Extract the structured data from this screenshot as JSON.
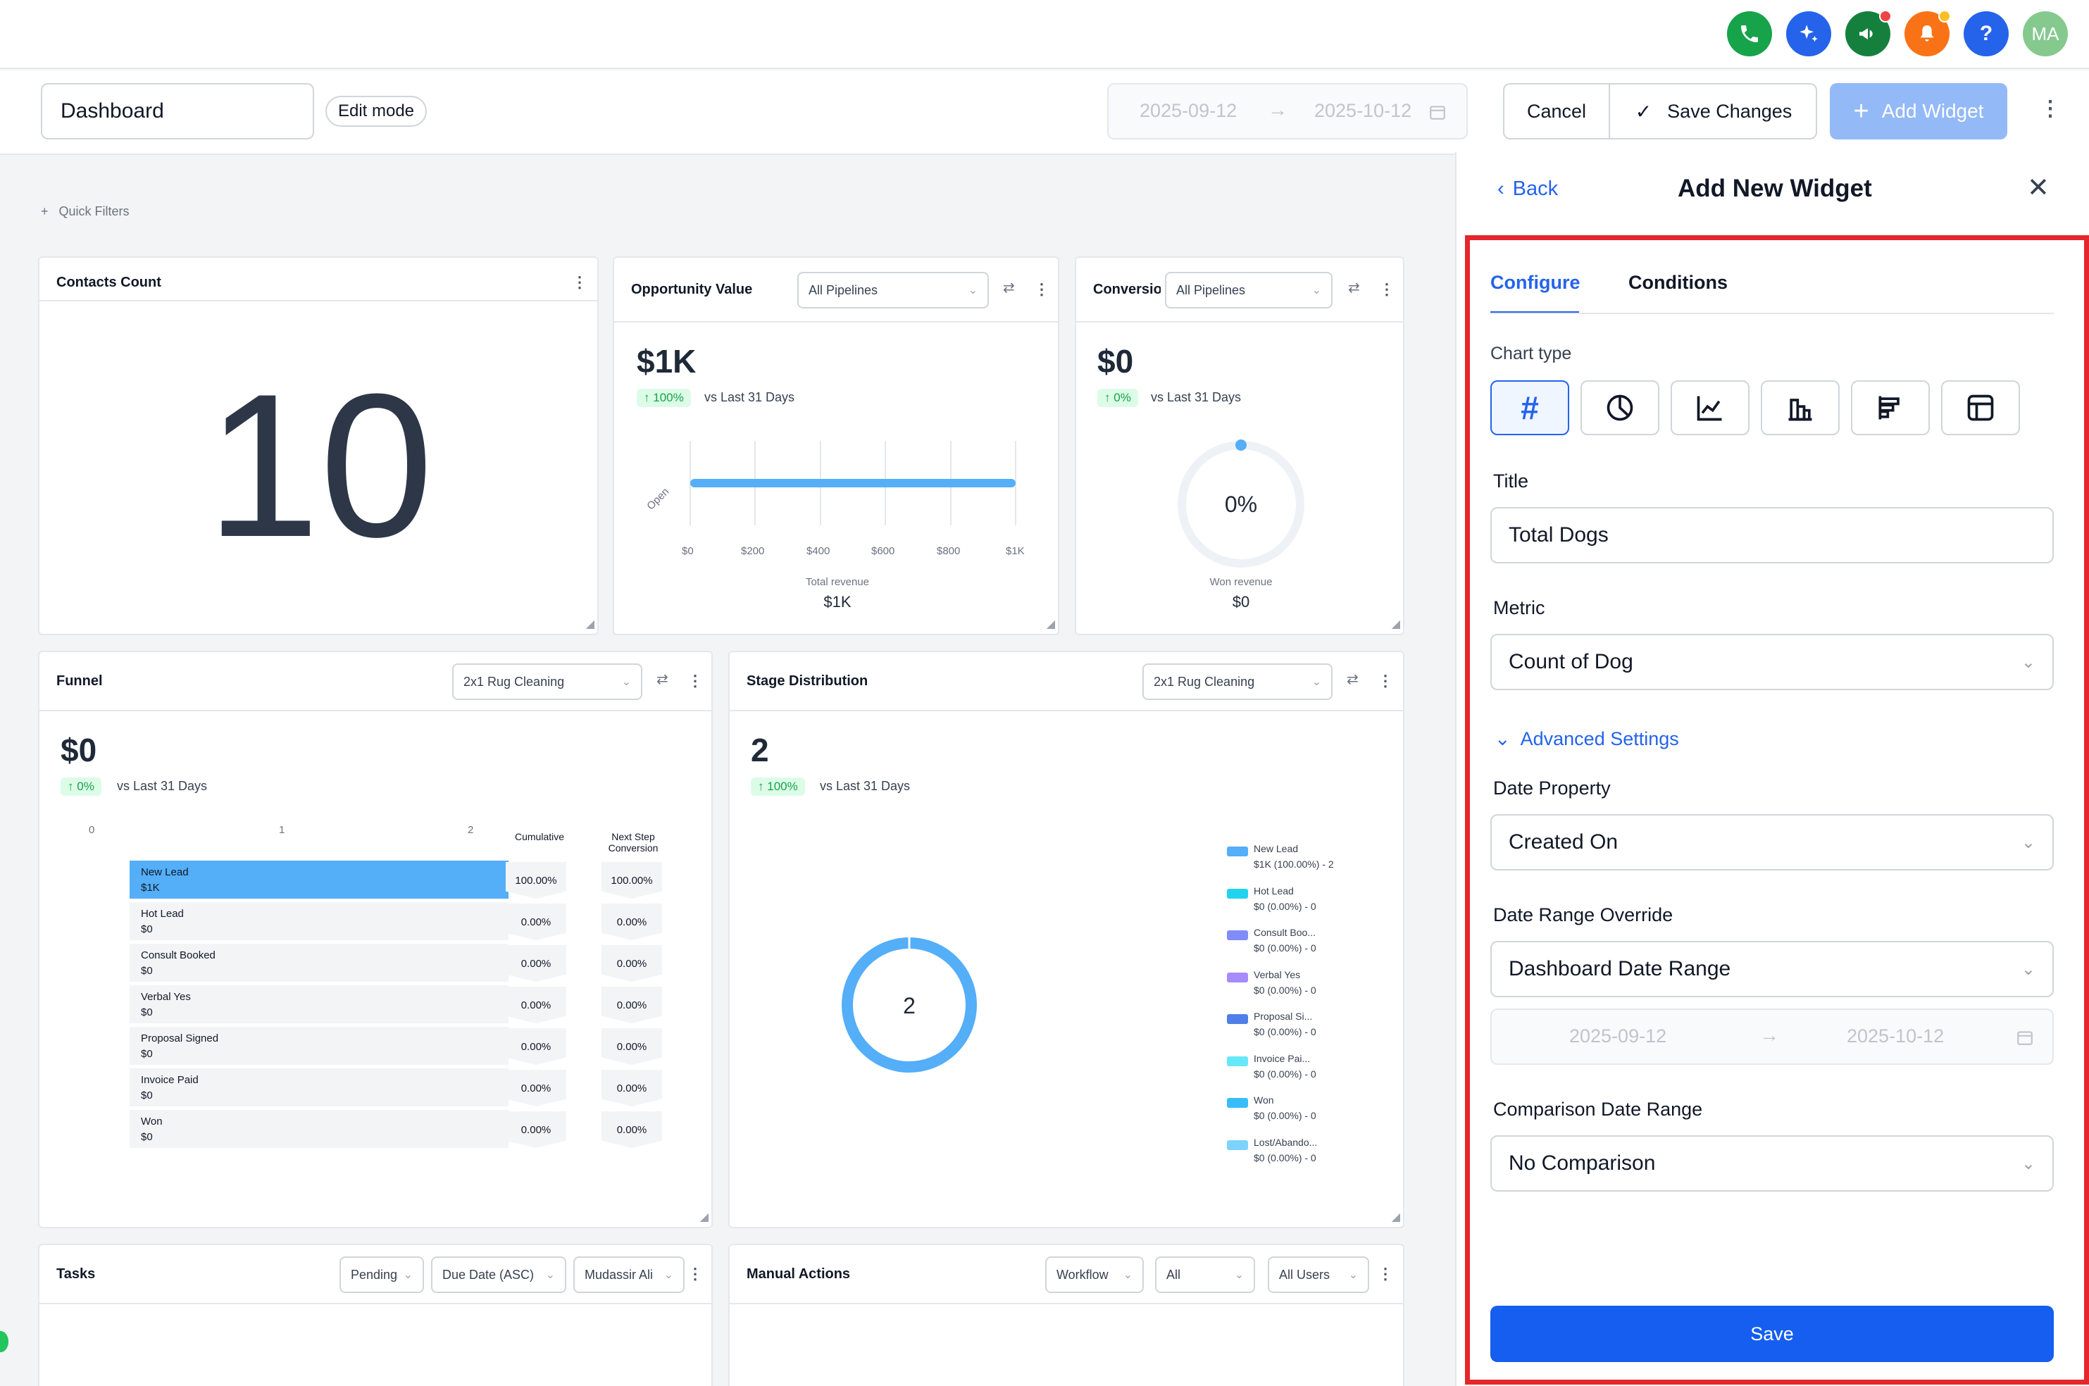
{
  "topnav": {
    "buttons": [
      {
        "name": "phone-icon",
        "color": "#16a34a"
      },
      {
        "name": "sparkle-icon",
        "color": "#2563eb"
      },
      {
        "name": "megaphone-icon",
        "color": "#15803d"
      },
      {
        "name": "bell-icon",
        "color": "#f97316"
      },
      {
        "name": "help-icon",
        "color": "#2563eb",
        "glyph": "?"
      },
      {
        "name": "avatar",
        "color": "#86c98f",
        "glyph": "MA"
      }
    ]
  },
  "header": {
    "dashboard_name": "Dashboard",
    "edit_mode": "Edit mode",
    "date_from": "2025-09-12",
    "date_to": "2025-10-12",
    "cancel": "Cancel",
    "save_changes": "Save Changes",
    "add_widget": "Add Widget"
  },
  "quick_filters": "Quick Filters",
  "contacts": {
    "title": "Contacts Count",
    "value": "10"
  },
  "opportunity": {
    "title": "Opportunity Value",
    "filter": "All Pipelines",
    "value": "$1K",
    "change": "100%",
    "vs": "vs Last 31 Days",
    "bar_label": "Open",
    "ticks": [
      "$0",
      "$200",
      "$400",
      "$600",
      "$800",
      "$1K"
    ],
    "total_label": "Total revenue",
    "total": "$1K"
  },
  "conversion": {
    "title": "Conversion",
    "filter": "All Pipelines",
    "value": "$0",
    "change": "0%",
    "vs": "vs Last 31 Days",
    "gauge": "0%",
    "total_label": "Won revenue",
    "total": "$0"
  },
  "funnel": {
    "title": "Funnel",
    "filter": "2x1 Rug Cleaning",
    "value": "$0",
    "change": "0%",
    "vs": "vs Last 31 Days",
    "axis": [
      "0",
      "1",
      "2"
    ],
    "col1": "Cumulative",
    "col2a": "Next Step",
    "col2b": "Conversion",
    "stages": [
      {
        "name": "New Lead",
        "value": "$1K",
        "cum": "100.00%",
        "next": "100.00%"
      },
      {
        "name": "Hot Lead",
        "value": "$0",
        "cum": "0.00%",
        "next": "0.00%"
      },
      {
        "name": "Consult Booked",
        "value": "$0",
        "cum": "0.00%",
        "next": "0.00%"
      },
      {
        "name": "Verbal Yes",
        "value": "$0",
        "cum": "0.00%",
        "next": "0.00%"
      },
      {
        "name": "Proposal Signed",
        "value": "$0",
        "cum": "0.00%",
        "next": "0.00%"
      },
      {
        "name": "Invoice Paid",
        "value": "$0",
        "cum": "0.00%",
        "next": "0.00%"
      },
      {
        "name": "Won",
        "value": "$0",
        "cum": "0.00%",
        "next": "0.00%"
      }
    ]
  },
  "stage": {
    "title": "Stage Distribution",
    "filter": "2x1 Rug Cleaning",
    "value": "2",
    "change": "100%",
    "vs": "vs Last 31 Days",
    "donut": "2",
    "legend": [
      {
        "l1": "New Lead",
        "l2": "$1K (100.00%) - 2",
        "color": "#54aef8"
      },
      {
        "l1": "Hot Lead",
        "l2": "$0 (0.00%) - 0",
        "color": "#22d3ee"
      },
      {
        "l1": "Consult Boo...",
        "l2": "$0 (0.00%) - 0",
        "color": "#818cf8"
      },
      {
        "l1": "Verbal Yes",
        "l2": "$0 (0.00%) - 0",
        "color": "#a78bfa"
      },
      {
        "l1": "Proposal Si...",
        "l2": "$0 (0.00%) - 0",
        "color": "#4f7fe8"
      },
      {
        "l1": "Invoice Pai...",
        "l2": "$0 (0.00%) - 0",
        "color": "#67e8f9"
      },
      {
        "l1": "Won",
        "l2": "$0 (0.00%) - 0",
        "color": "#38bdf8"
      },
      {
        "l1": "Lost/Abando...",
        "l2": "$0 (0.00%) - 0",
        "color": "#7dd3fc"
      }
    ]
  },
  "tasks": {
    "title": "Tasks",
    "f1": "Pending",
    "f2": "Due Date (ASC)",
    "f3": "Mudassir Ali"
  },
  "manual": {
    "title": "Manual Actions",
    "f1": "Workflow",
    "f2": "All",
    "f3": "All Users"
  },
  "panel": {
    "back": "Back",
    "title": "Add New Widget",
    "tab_configure": "Configure",
    "tab_conditions": "Conditions",
    "chart_type_label": "Chart type",
    "chart_types": [
      "number-icon",
      "pie-chart-icon",
      "line-chart-icon",
      "bar-chart-icon",
      "horizontal-bar-icon",
      "table-icon"
    ],
    "title_label": "Title",
    "title_value": "Total Dogs",
    "metric_label": "Metric",
    "metric_value": "Count of Dog",
    "advanced": "Advanced Settings",
    "date_property_label": "Date Property",
    "date_property": "Created On",
    "date_range_label": "Date Range Override",
    "date_range": "Dashboard Date Range",
    "range_from": "2025-09-12",
    "range_to": "2025-10-12",
    "comparison_label": "Comparison Date Range",
    "comparison": "No Comparison",
    "save": "Save",
    "highlight_color": "#e5262b"
  }
}
